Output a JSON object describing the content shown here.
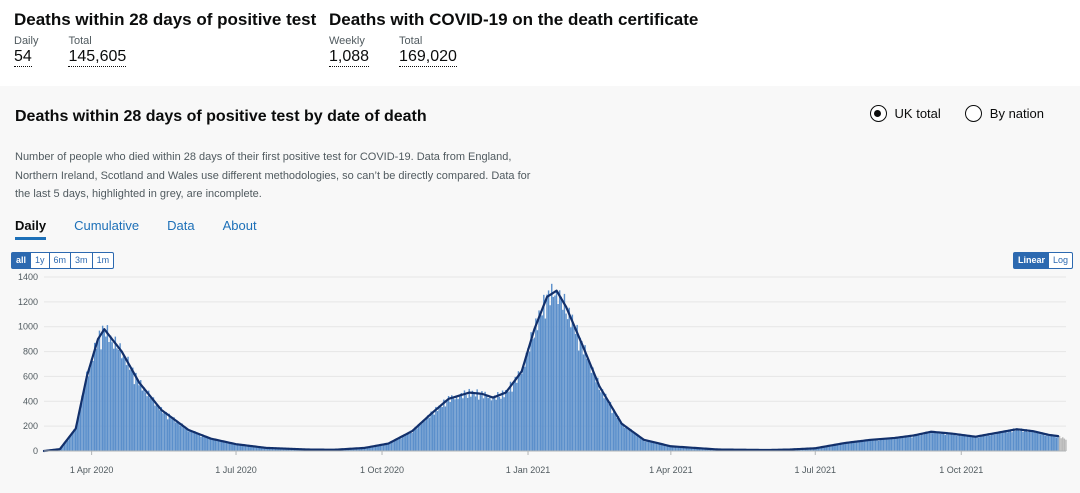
{
  "headline": {
    "left": {
      "title": "Deaths within 28 days of positive test",
      "m1_label": "Daily",
      "m1_value": "54",
      "m2_label": "Total",
      "m2_value": "145,605"
    },
    "right": {
      "title": "Deaths with COVID-19 on the death certificate",
      "m1_label": "Weekly",
      "m1_value": "1,088",
      "m2_label": "Total",
      "m2_value": "169,020"
    }
  },
  "card": {
    "title": "Deaths within 28 days of positive test by date of death",
    "radio_uk": "UK total",
    "radio_nation": "By nation",
    "description": "Number of people who died within 28 days of their first positive test for COVID-19. Data from England, Northern Ireland, Scotland and Wales use different methodologies, so can’t be directly compared. Data for the last 5 days, highlighted in grey, are incomplete."
  },
  "tabs": [
    "Daily",
    "Cumulative",
    "Data",
    "About"
  ],
  "ranges": [
    "all",
    "1y",
    "6m",
    "3m",
    "1m"
  ],
  "scales": [
    "Linear",
    "Log"
  ],
  "colors": {
    "bar": "#5b8fcb",
    "line": "#12306b",
    "incomplete": "#b8b8b8",
    "accent": "#1d70b8"
  },
  "chart_data": {
    "type": "bar",
    "ylim": [
      0,
      1400
    ],
    "yticks": [
      0,
      200,
      400,
      600,
      800,
      1000,
      1200,
      1400
    ],
    "x_start": "2020-03-02",
    "x_end": "2021-12-06",
    "xticks": [
      {
        "date": "2020-04-01",
        "label": "1 Apr 2020"
      },
      {
        "date": "2020-07-01",
        "label": "1 Jul 2020"
      },
      {
        "date": "2020-10-01",
        "label": "1 Oct 2020"
      },
      {
        "date": "2021-01-01",
        "label": "1 Jan 2021"
      },
      {
        "date": "2021-04-01",
        "label": "1 Apr 2021"
      },
      {
        "date": "2021-07-01",
        "label": "1 Jul 2021"
      },
      {
        "date": "2021-10-01",
        "label": "1 Oct 2021"
      }
    ],
    "series": [
      {
        "values": [
          {
            "date": "2020-03-02",
            "value": 0
          },
          {
            "date": "2020-03-12",
            "value": 15
          },
          {
            "date": "2020-03-22",
            "value": 180
          },
          {
            "date": "2020-03-29",
            "value": 600
          },
          {
            "date": "2020-04-05",
            "value": 900
          },
          {
            "date": "2020-04-09",
            "value": 980
          },
          {
            "date": "2020-04-20",
            "value": 800
          },
          {
            "date": "2020-05-01",
            "value": 550
          },
          {
            "date": "2020-05-15",
            "value": 330
          },
          {
            "date": "2020-06-01",
            "value": 170
          },
          {
            "date": "2020-06-15",
            "value": 100
          },
          {
            "date": "2020-07-01",
            "value": 55
          },
          {
            "date": "2020-07-20",
            "value": 25
          },
          {
            "date": "2020-08-15",
            "value": 12
          },
          {
            "date": "2020-09-01",
            "value": 10
          },
          {
            "date": "2020-09-20",
            "value": 25
          },
          {
            "date": "2020-10-05",
            "value": 60
          },
          {
            "date": "2020-10-20",
            "value": 160
          },
          {
            "date": "2020-11-01",
            "value": 300
          },
          {
            "date": "2020-11-12",
            "value": 420
          },
          {
            "date": "2020-11-25",
            "value": 470
          },
          {
            "date": "2020-12-03",
            "value": 460
          },
          {
            "date": "2020-12-10",
            "value": 430
          },
          {
            "date": "2020-12-18",
            "value": 470
          },
          {
            "date": "2020-12-28",
            "value": 640
          },
          {
            "date": "2021-01-05",
            "value": 980
          },
          {
            "date": "2021-01-13",
            "value": 1240
          },
          {
            "date": "2021-01-19",
            "value": 1290
          },
          {
            "date": "2021-01-25",
            "value": 1160
          },
          {
            "date": "2021-02-05",
            "value": 830
          },
          {
            "date": "2021-02-15",
            "value": 520
          },
          {
            "date": "2021-03-01",
            "value": 220
          },
          {
            "date": "2021-03-15",
            "value": 90
          },
          {
            "date": "2021-04-01",
            "value": 38
          },
          {
            "date": "2021-05-01",
            "value": 12
          },
          {
            "date": "2021-06-01",
            "value": 8
          },
          {
            "date": "2021-06-15",
            "value": 12
          },
          {
            "date": "2021-07-01",
            "value": 22
          },
          {
            "date": "2021-07-20",
            "value": 65
          },
          {
            "date": "2021-08-05",
            "value": 90
          },
          {
            "date": "2021-08-20",
            "value": 105
          },
          {
            "date": "2021-09-01",
            "value": 125
          },
          {
            "date": "2021-09-12",
            "value": 155
          },
          {
            "date": "2021-09-25",
            "value": 140
          },
          {
            "date": "2021-10-10",
            "value": 115
          },
          {
            "date": "2021-10-25",
            "value": 150
          },
          {
            "date": "2021-11-05",
            "value": 175
          },
          {
            "date": "2021-11-15",
            "value": 160
          },
          {
            "date": "2021-11-25",
            "value": 130
          },
          {
            "date": "2021-12-01",
            "value": 120
          },
          {
            "date": "2021-12-06",
            "value": 95
          }
        ],
        "incomplete_last_days": 5
      }
    ]
  }
}
